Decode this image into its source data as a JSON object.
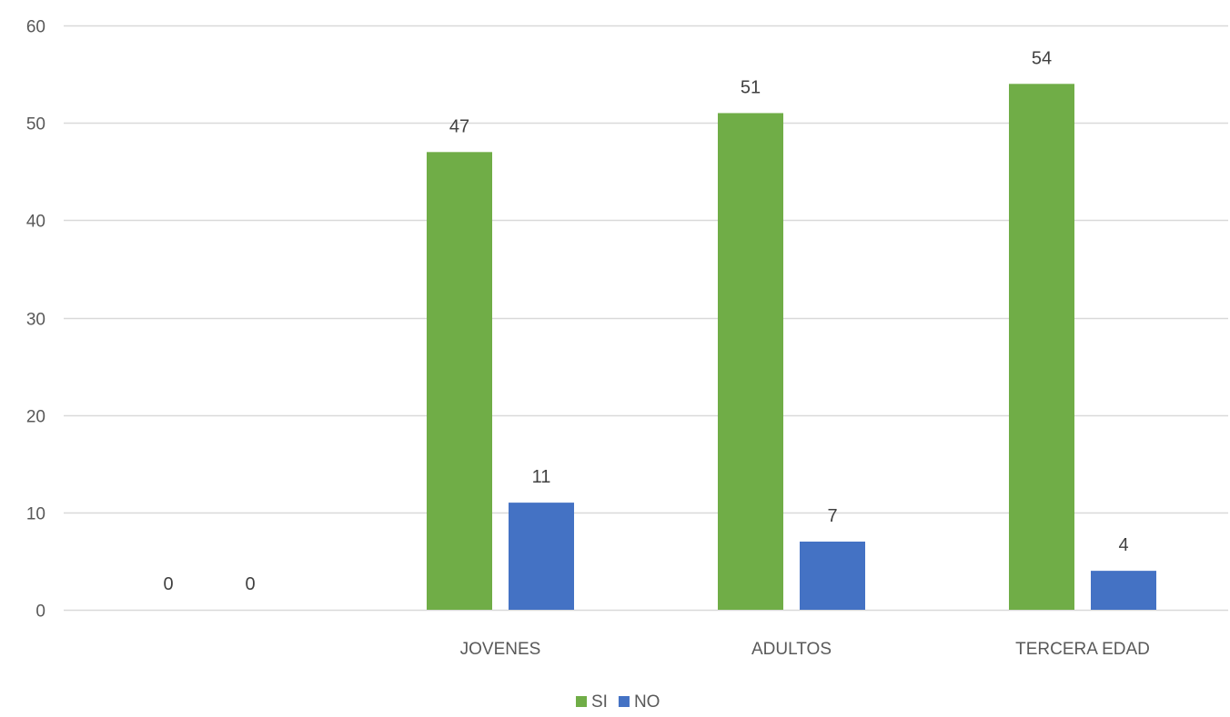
{
  "chart_data": {
    "type": "bar",
    "categories": [
      "",
      "JOVENES",
      "ADULTOS",
      "TERCERA EDAD"
    ],
    "series": [
      {
        "name": "SI",
        "values": [
          0,
          47,
          51,
          54
        ],
        "color": "#70AD47"
      },
      {
        "name": "NO",
        "values": [
          0,
          11,
          7,
          4
        ],
        "color": "#4472C4"
      }
    ],
    "ylim": [
      0,
      60
    ],
    "yticks": [
      0,
      10,
      20,
      30,
      40,
      50,
      60
    ],
    "grid": true,
    "legend": "bottom-center",
    "data_labels": true,
    "gridline_color": "#D9D9D9"
  }
}
